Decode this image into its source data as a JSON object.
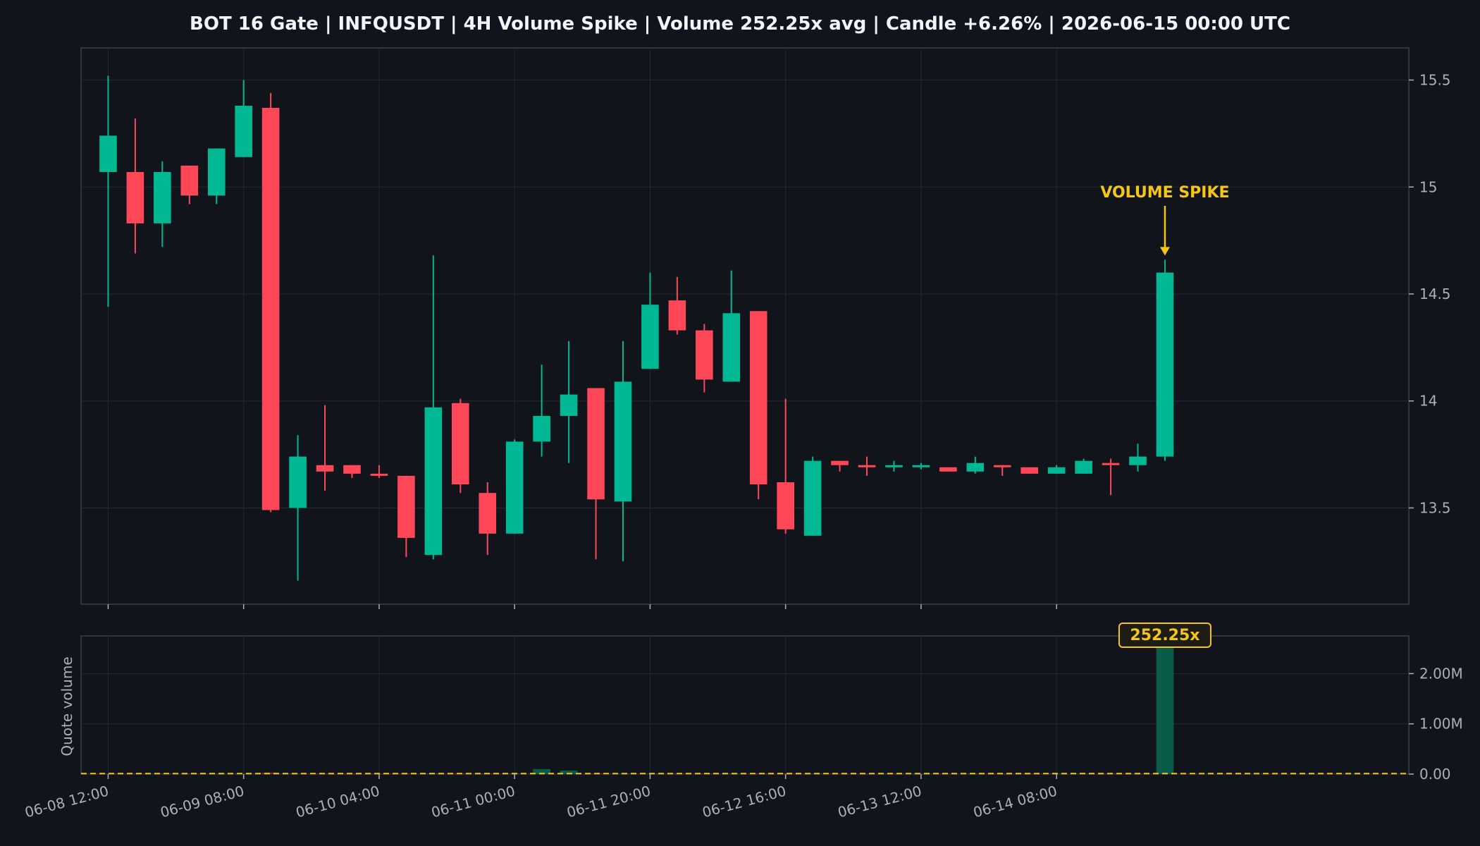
{
  "colors": {
    "background": "#11141b",
    "panel": "#11141b",
    "border": "#3a3f4b",
    "grid": "#232834",
    "up": "#00b894",
    "down": "#ff4757",
    "accent": "#f5c518",
    "text": "#aab0bb",
    "title": "#f2f4f7"
  },
  "chart_data": {
    "type": "candlestick",
    "title": "BOT 16 Gate | INFQUSDT | 4H Volume Spike | Volume 252.25x avg | Candle +6.26% | 2026-06-15 00:00 UTC",
    "price_ylim": [
      13.05,
      15.65
    ],
    "price_yticks": [
      {
        "v": 13.5,
        "label": "13.5"
      },
      {
        "v": 14,
        "label": "14"
      },
      {
        "v": 14.5,
        "label": "14.5"
      },
      {
        "v": 15,
        "label": "15"
      },
      {
        "v": 15.5,
        "label": "15.5"
      }
    ],
    "volume_ylabel": "Quote volume",
    "volume_ylim": [
      0,
      2750000
    ],
    "volume_yticks": [
      {
        "v": 0,
        "label": "0.00"
      },
      {
        "v": 1000000,
        "label": "1.00M"
      },
      {
        "v": 2000000,
        "label": "2.00M"
      }
    ],
    "x_ticks": [
      {
        "i": 0,
        "label": "06-08 12:00"
      },
      {
        "i": 5,
        "label": "06-09 08:00"
      },
      {
        "i": 10,
        "label": "06-10 04:00"
      },
      {
        "i": 15,
        "label": "06-11 00:00"
      },
      {
        "i": 20,
        "label": "06-11 20:00"
      },
      {
        "i": 25,
        "label": "06-12 16:00"
      },
      {
        "i": 30,
        "label": "06-13 12:00"
      },
      {
        "i": 35,
        "label": "06-14 08:00"
      }
    ],
    "x_range": [
      -1,
      48
    ],
    "volume_avg": 10000,
    "spike_index": 39,
    "spike_annotation": "VOLUME SPIKE",
    "spike_ratio_label": "252.25x",
    "candles": [
      {
        "o": 15.07,
        "h": 15.52,
        "l": 14.44,
        "c": 15.24,
        "v": 8000
      },
      {
        "o": 15.07,
        "h": 15.32,
        "l": 14.69,
        "c": 14.83,
        "v": 7000
      },
      {
        "o": 14.83,
        "h": 15.12,
        "l": 14.72,
        "c": 15.07,
        "v": 7000
      },
      {
        "o": 15.1,
        "h": 15.1,
        "l": 14.92,
        "c": 14.96,
        "v": 6000
      },
      {
        "o": 14.96,
        "h": 15.18,
        "l": 14.92,
        "c": 15.18,
        "v": 6000
      },
      {
        "o": 15.14,
        "h": 15.5,
        "l": 15.14,
        "c": 15.38,
        "v": 7000
      },
      {
        "o": 15.37,
        "h": 15.44,
        "l": 13.48,
        "c": 13.49,
        "v": 30000
      },
      {
        "o": 13.5,
        "h": 13.84,
        "l": 13.16,
        "c": 13.74,
        "v": 10000
      },
      {
        "o": 13.7,
        "h": 13.98,
        "l": 13.58,
        "c": 13.67,
        "v": 6000
      },
      {
        "o": 13.7,
        "h": 13.7,
        "l": 13.64,
        "c": 13.66,
        "v": 5000
      },
      {
        "o": 13.66,
        "h": 13.7,
        "l": 13.64,
        "c": 13.65,
        "v": 5000
      },
      {
        "o": 13.65,
        "h": 13.65,
        "l": 13.27,
        "c": 13.36,
        "v": 8000
      },
      {
        "o": 13.28,
        "h": 14.68,
        "l": 13.26,
        "c": 13.97,
        "v": 12000
      },
      {
        "o": 13.99,
        "h": 14.01,
        "l": 13.57,
        "c": 13.61,
        "v": 8000
      },
      {
        "o": 13.57,
        "h": 13.62,
        "l": 13.28,
        "c": 13.38,
        "v": 7000
      },
      {
        "o": 13.38,
        "h": 13.82,
        "l": 13.38,
        "c": 13.81,
        "v": 9000
      },
      {
        "o": 13.81,
        "h": 14.17,
        "l": 13.74,
        "c": 13.93,
        "v": 100000
      },
      {
        "o": 13.93,
        "h": 14.28,
        "l": 13.71,
        "c": 14.03,
        "v": 70000
      },
      {
        "o": 14.06,
        "h": 14.06,
        "l": 13.26,
        "c": 13.54,
        "v": 9000
      },
      {
        "o": 13.53,
        "h": 14.28,
        "l": 13.25,
        "c": 14.09,
        "v": 9000
      },
      {
        "o": 14.15,
        "h": 14.6,
        "l": 14.15,
        "c": 14.45,
        "v": 8000
      },
      {
        "o": 14.47,
        "h": 14.58,
        "l": 14.31,
        "c": 14.33,
        "v": 7000
      },
      {
        "o": 14.33,
        "h": 14.36,
        "l": 14.04,
        "c": 14.1,
        "v": 7000
      },
      {
        "o": 14.09,
        "h": 14.61,
        "l": 14.09,
        "c": 14.41,
        "v": 8000
      },
      {
        "o": 14.42,
        "h": 14.42,
        "l": 13.54,
        "c": 13.61,
        "v": 10000
      },
      {
        "o": 13.62,
        "h": 14.01,
        "l": 13.38,
        "c": 13.4,
        "v": 9000
      },
      {
        "o": 13.37,
        "h": 13.74,
        "l": 13.37,
        "c": 13.72,
        "v": 9000
      },
      {
        "o": 13.72,
        "h": 13.72,
        "l": 13.67,
        "c": 13.7,
        "v": 5000
      },
      {
        "o": 13.7,
        "h": 13.74,
        "l": 13.65,
        "c": 13.69,
        "v": 5000
      },
      {
        "o": 13.69,
        "h": 13.72,
        "l": 13.67,
        "c": 13.7,
        "v": 5000
      },
      {
        "o": 13.69,
        "h": 13.71,
        "l": 13.68,
        "c": 13.7,
        "v": 5000
      },
      {
        "o": 13.69,
        "h": 13.69,
        "l": 13.67,
        "c": 13.67,
        "v": 5000
      },
      {
        "o": 13.67,
        "h": 13.74,
        "l": 13.66,
        "c": 13.71,
        "v": 5000
      },
      {
        "o": 13.7,
        "h": 13.7,
        "l": 13.65,
        "c": 13.69,
        "v": 5000
      },
      {
        "o": 13.69,
        "h": 13.69,
        "l": 13.66,
        "c": 13.66,
        "v": 5000
      },
      {
        "o": 13.66,
        "h": 13.7,
        "l": 13.66,
        "c": 13.69,
        "v": 5000
      },
      {
        "o": 13.66,
        "h": 13.73,
        "l": 13.66,
        "c": 13.72,
        "v": 6000
      },
      {
        "o": 13.71,
        "h": 13.73,
        "l": 13.56,
        "c": 13.7,
        "v": 6000
      },
      {
        "o": 13.7,
        "h": 13.8,
        "l": 13.67,
        "c": 13.74,
        "v": 6000
      },
      {
        "o": 13.74,
        "h": 14.66,
        "l": 13.72,
        "c": 14.6,
        "v": 2522500
      }
    ]
  }
}
